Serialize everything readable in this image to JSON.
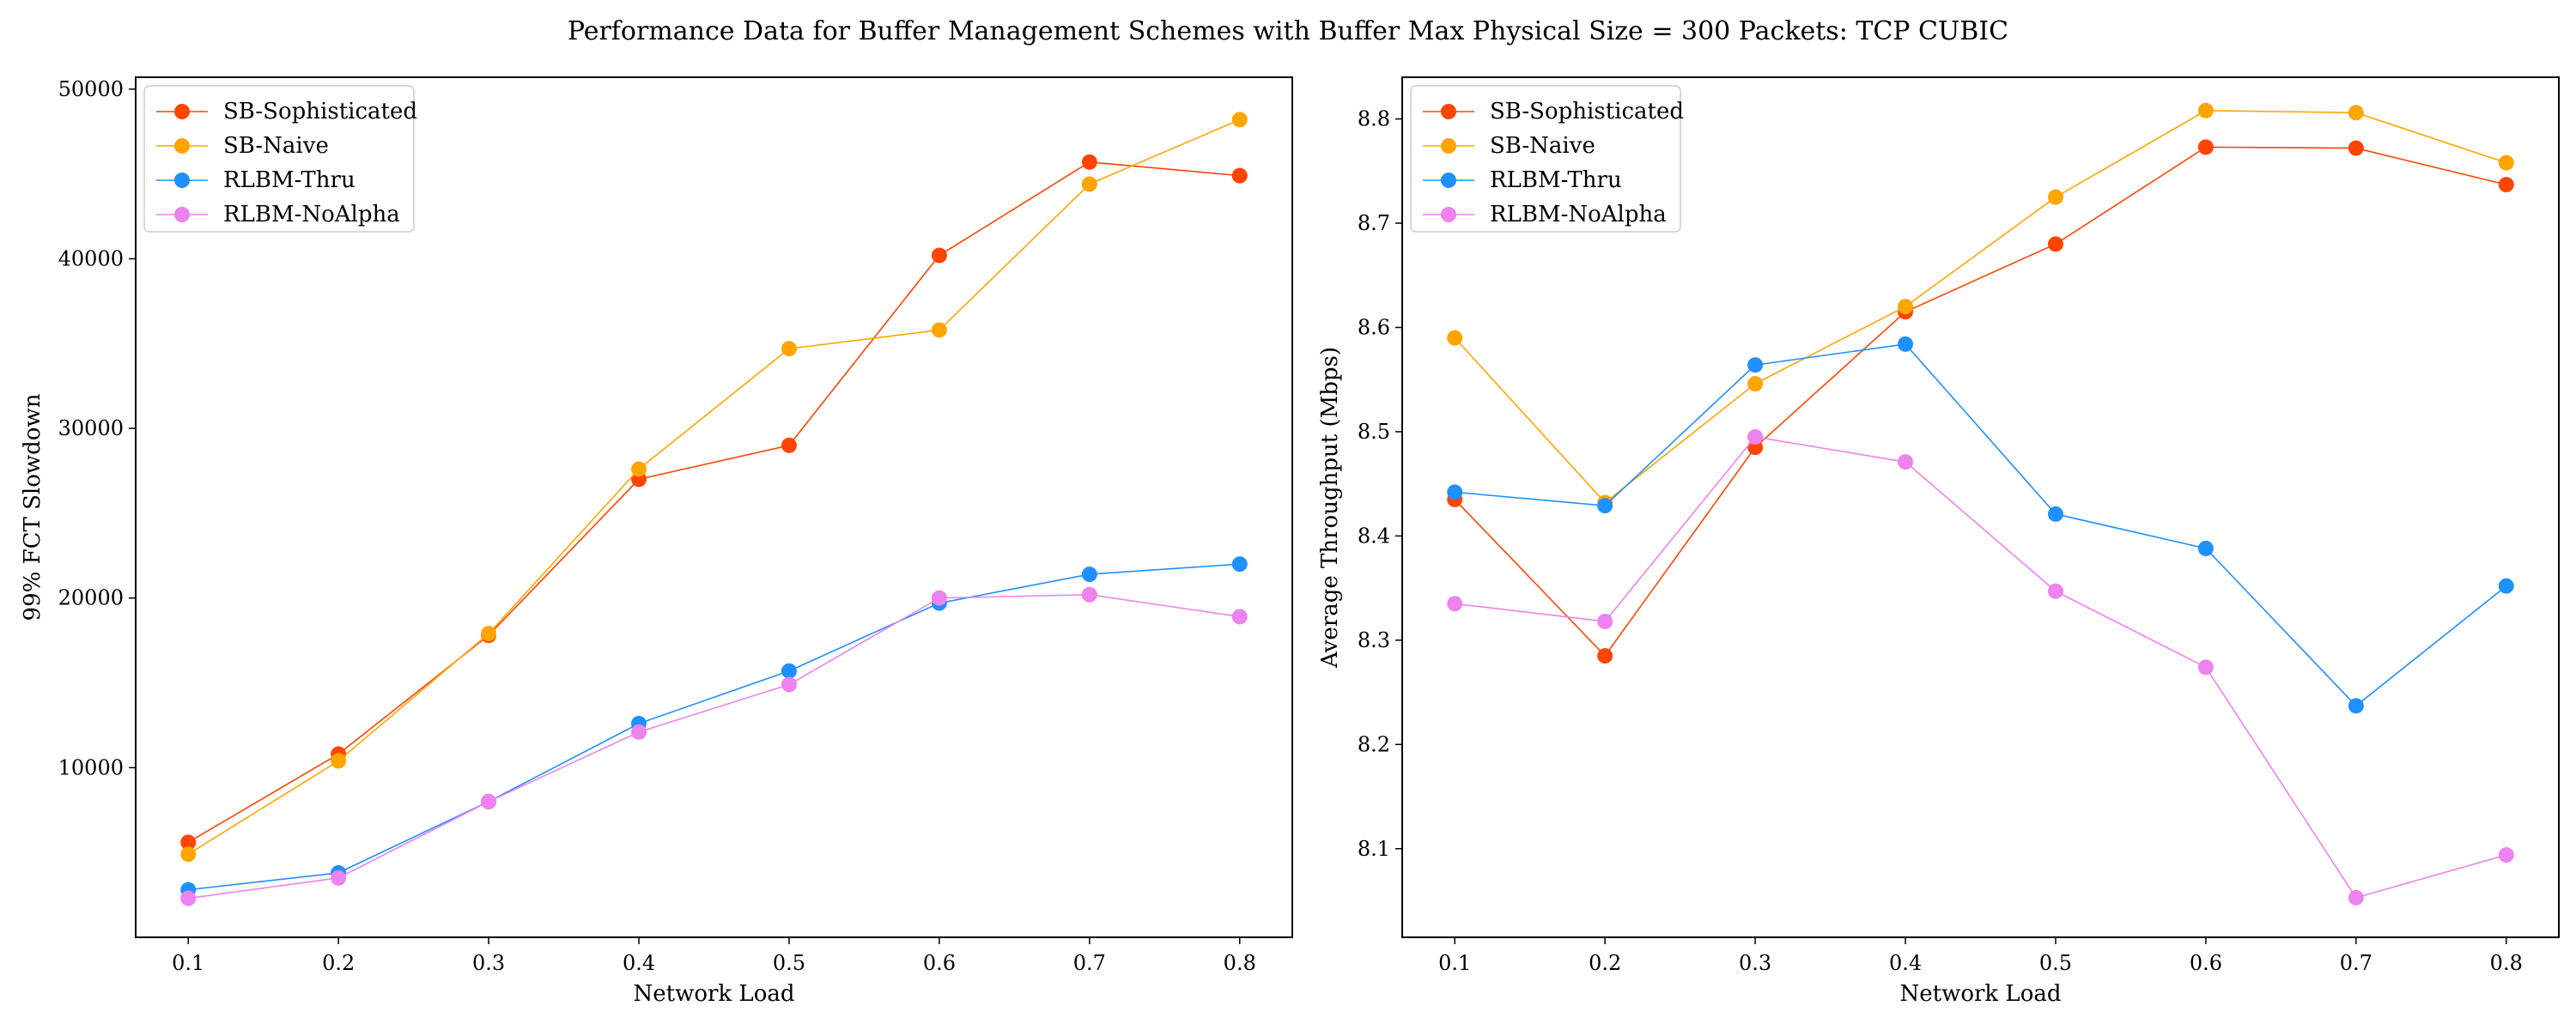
{
  "figure_title": "Performance Data for Buffer Management Schemes with Buffer Max Physical Size = 300 Packets: TCP CUBIC",
  "chart_data": [
    {
      "type": "line",
      "title": "",
      "xlabel": "Network Load",
      "ylabel": "99% FCT Slowdown",
      "x": [
        0.1,
        0.2,
        0.3,
        0.4,
        0.5,
        0.6,
        0.7,
        0.8
      ],
      "xticks": [
        "0.1",
        "0.2",
        "0.3",
        "0.4",
        "0.5",
        "0.6",
        "0.7",
        "0.8"
      ],
      "xlim": [
        0.065,
        0.835
      ],
      "ylim": [
        0,
        50700
      ],
      "yticks": [
        10000,
        20000,
        30000,
        40000,
        50000
      ],
      "ytick_labels": [
        "10000",
        "20000",
        "30000",
        "40000",
        "50000"
      ],
      "legend_position": "top-left",
      "series": [
        {
          "name": "SB-Sophisticated",
          "color": "#ff4500",
          "values": [
            5600,
            10800,
            17800,
            27000,
            29000,
            40200,
            45700,
            44900
          ]
        },
        {
          "name": "SB-Naive",
          "color": "#ffa500",
          "values": [
            4900,
            10400,
            17900,
            27600,
            34700,
            35800,
            44400,
            48200
          ]
        },
        {
          "name": "RLBM-Thru",
          "color": "#1e90ff",
          "values": [
            2800,
            3800,
            8000,
            12600,
            15700,
            19700,
            21400,
            22000
          ]
        },
        {
          "name": "RLBM-NoAlpha",
          "color": "#ee82ee",
          "values": [
            2300,
            3500,
            8000,
            12100,
            14900,
            20000,
            20200,
            18900
          ]
        }
      ]
    },
    {
      "type": "line",
      "title": "",
      "xlabel": "Network Load",
      "ylabel": "Average Throughput (Mbps)",
      "x": [
        0.1,
        0.2,
        0.3,
        0.4,
        0.5,
        0.6,
        0.7,
        0.8
      ],
      "xticks": [
        "0.1",
        "0.2",
        "0.3",
        "0.4",
        "0.5",
        "0.6",
        "0.7",
        "0.8"
      ],
      "xlim": [
        0.065,
        0.835
      ],
      "ylim": [
        8.015,
        8.84
      ],
      "yticks": [
        8.1,
        8.2,
        8.3,
        8.4,
        8.5,
        8.6,
        8.7,
        8.8
      ],
      "ytick_labels": [
        "8.1",
        "8.2",
        "8.3",
        "8.4",
        "8.5",
        "8.6",
        "8.7",
        "8.8"
      ],
      "legend_position": "top-left",
      "series": [
        {
          "name": "SB-Sophisticated",
          "color": "#ff4500",
          "values": [
            8.435,
            8.285,
            8.485,
            8.615,
            8.68,
            8.773,
            8.772,
            8.737
          ]
        },
        {
          "name": "SB-Naive",
          "color": "#ffa500",
          "values": [
            8.59,
            8.432,
            8.546,
            8.62,
            8.725,
            8.808,
            8.806,
            8.758
          ]
        },
        {
          "name": "RLBM-Thru",
          "color": "#1e90ff",
          "values": [
            8.442,
            8.429,
            8.564,
            8.584,
            8.421,
            8.388,
            8.237,
            8.352
          ]
        },
        {
          "name": "RLBM-NoAlpha",
          "color": "#ee82ee",
          "values": [
            8.335,
            8.318,
            8.495,
            8.471,
            8.347,
            8.274,
            8.053,
            8.094
          ]
        }
      ]
    }
  ]
}
